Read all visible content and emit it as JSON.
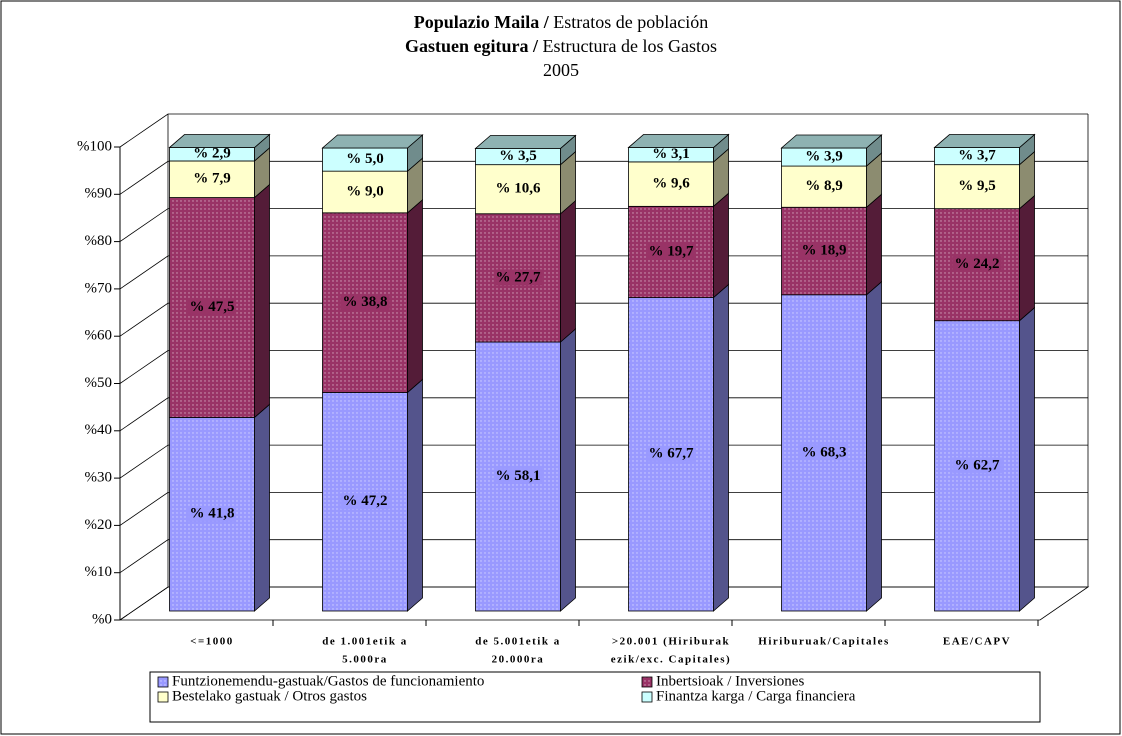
{
  "chart_data": {
    "type": "stacked_bar_3d",
    "title_lines": [
      {
        "bold": "Populazio Maila /",
        "text": "Estratos de población"
      },
      {
        "bold": "Gastuen egitura /",
        "text": "Estructura de los Gastos"
      },
      {
        "text": "2005"
      }
    ],
    "categories": [
      [
        "<=1000"
      ],
      [
        "de 1.001etik a",
        "5.000ra"
      ],
      [
        "de 5.001etik a",
        "20.000ra"
      ],
      [
        ">20.001 (Hiriburak",
        "ezik/exc. Capitales)"
      ],
      [
        "Hiriburuak/Capitales"
      ],
      [
        "EAE/CAPV"
      ]
    ],
    "series": [
      {
        "name": "Funtzionemendu-gastuak/Gastos de funcionamiento",
        "color": "#9999ff",
        "values": [
          41.8,
          47.2,
          58.1,
          67.7,
          68.3,
          62.7
        ],
        "value_labels": [
          "% 41,8",
          "% 47,2",
          "% 58,1",
          "% 67,7",
          "% 68,3",
          "% 62,7"
        ]
      },
      {
        "name": "Inbertsioak / Inversiones",
        "color": "#993366",
        "values": [
          47.5,
          38.8,
          27.7,
          19.7,
          18.9,
          24.2
        ],
        "value_labels": [
          "% 47,5",
          "% 38,8",
          "% 27,7",
          "% 19,7",
          "% 18,9",
          "% 24,2"
        ]
      },
      {
        "name": "Bestelako gastuak / Otros gastos",
        "color": "#ffffcc",
        "values": [
          7.9,
          9.0,
          10.6,
          9.6,
          8.9,
          9.5
        ],
        "value_labels": [
          "% 7,9",
          "% 9,0",
          "% 10,6",
          "% 9,6",
          "% 8,9",
          "% 9,5"
        ]
      },
      {
        "name": "Finantza karga / Carga financiera",
        "color": "#ccffff",
        "values": [
          2.9,
          5.0,
          3.5,
          3.1,
          3.9,
          3.7
        ],
        "value_labels": [
          "% 2,9",
          "% 5,0",
          "% 3,5",
          "% 3,1",
          "% 3,9",
          "% 3,7"
        ]
      }
    ],
    "ylim": [
      0,
      100
    ],
    "yticks": [
      {
        "value": 0,
        "label": "%0"
      },
      {
        "value": 10,
        "label": "%10"
      },
      {
        "value": 20,
        "label": "%20"
      },
      {
        "value": 30,
        "label": "%30"
      },
      {
        "value": 40,
        "label": "%40"
      },
      {
        "value": 50,
        "label": "%50"
      },
      {
        "value": 60,
        "label": "%60"
      },
      {
        "value": 70,
        "label": "%70"
      },
      {
        "value": 80,
        "label": "%80"
      },
      {
        "value": 90,
        "label": "%90"
      },
      {
        "value": 100,
        "label": "%100"
      }
    ],
    "grid": true,
    "legend": "bottom"
  }
}
